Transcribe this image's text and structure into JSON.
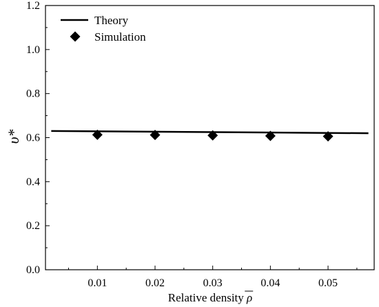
{
  "chart_data": {
    "type": "line",
    "title": "",
    "xlabel": "Relative density ",
    "xlabel_symbol": "ρ",
    "ylabel": "υ*",
    "xlim": [
      0.001,
      0.058
    ],
    "ylim": [
      0.0,
      1.2
    ],
    "x_ticks": [
      0.01,
      0.02,
      0.03,
      0.04,
      0.05
    ],
    "x_tick_labels": [
      "0.01",
      "0.02",
      "0.03",
      "0.04",
      "0.05"
    ],
    "y_ticks": [
      0.0,
      0.2,
      0.4,
      0.6,
      0.8,
      1.0,
      1.2
    ],
    "y_tick_labels": [
      "0.0",
      "0.2",
      "0.4",
      "0.6",
      "0.8",
      "1.0",
      "1.2"
    ],
    "grid": false,
    "legend_position": "top-left",
    "series": [
      {
        "name": "Theory",
        "kind": "line",
        "color": "#000000",
        "x": [
          0.002,
          0.057
        ],
        "y": [
          0.63,
          0.62
        ]
      },
      {
        "name": "Simulation",
        "kind": "scatter",
        "marker": "diamond",
        "color": "#000000",
        "x": [
          0.01,
          0.02,
          0.03,
          0.04,
          0.05
        ],
        "y": [
          0.613,
          0.612,
          0.61,
          0.608,
          0.606
        ]
      }
    ]
  }
}
